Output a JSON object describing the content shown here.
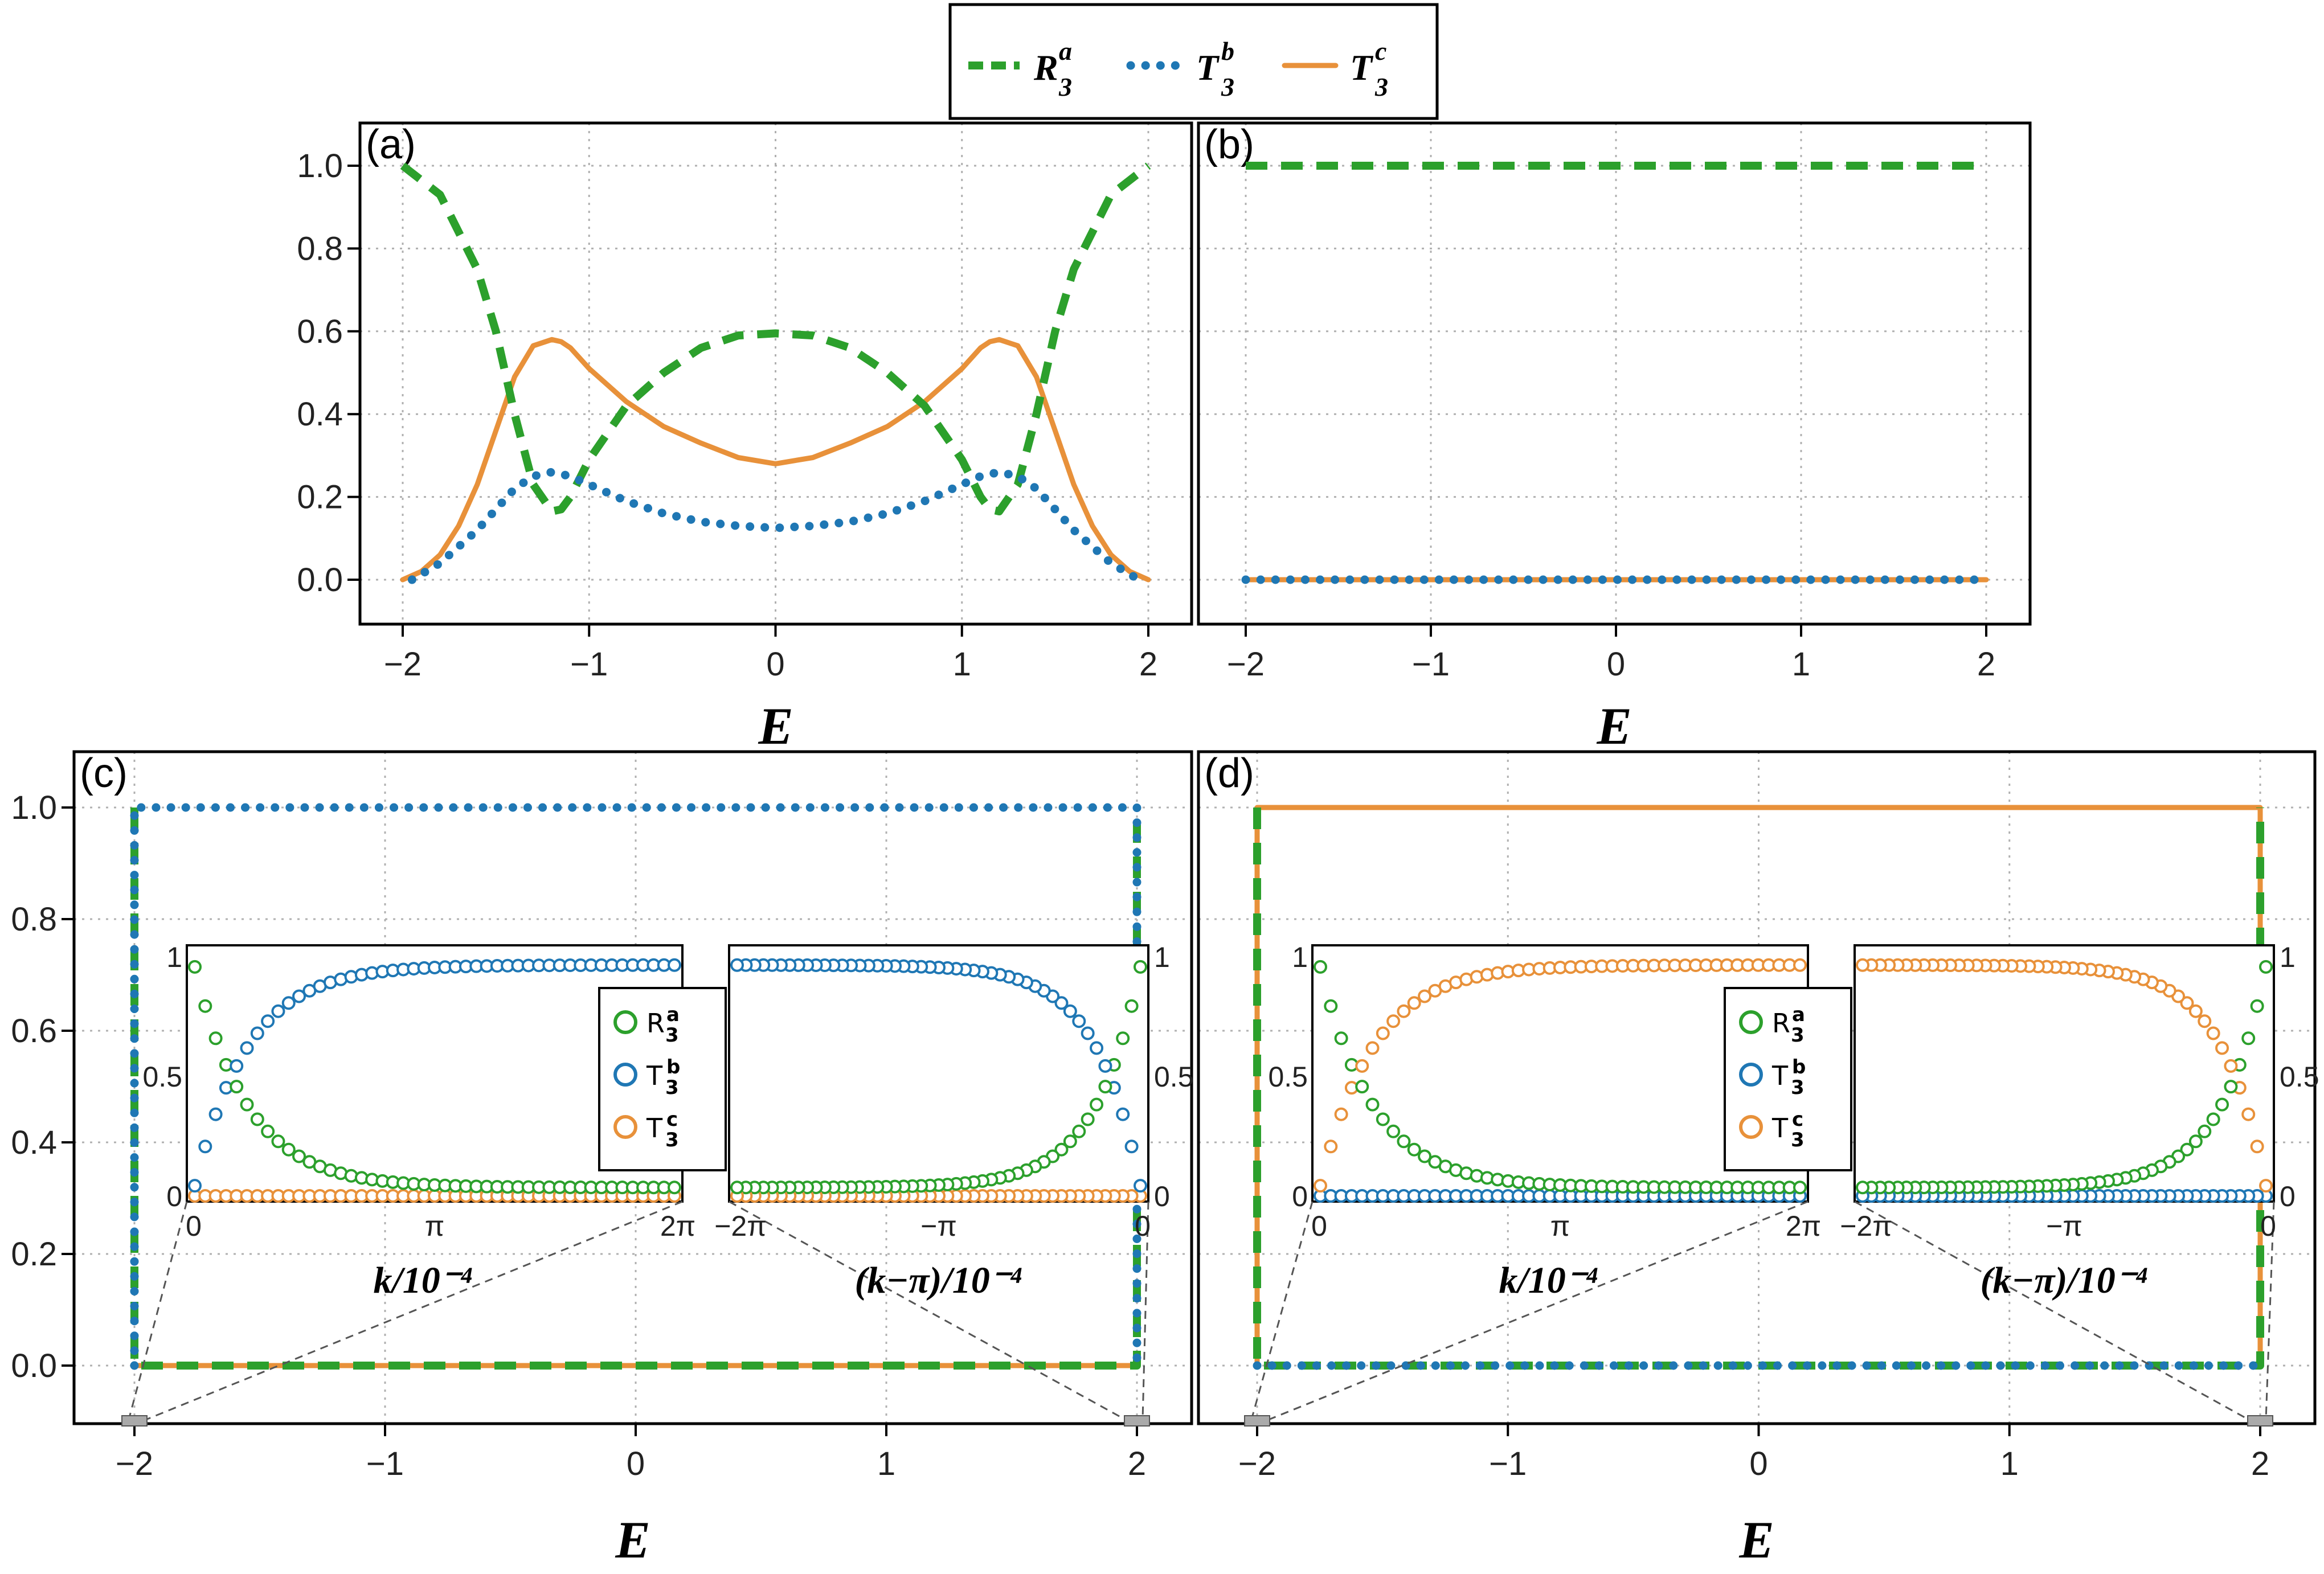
{
  "colors": {
    "R": "#2ca02c",
    "Tb": "#1f77b4",
    "Tc": "#e8913a",
    "axis": "#000000",
    "grid": "#b0b0b0"
  },
  "legend": [
    {
      "key": "R",
      "base": "R",
      "sup": "a",
      "sub": "3",
      "style": "dashed"
    },
    {
      "key": "Tb",
      "base": "T",
      "sup": "b",
      "sub": "3",
      "style": "dotted"
    },
    {
      "key": "Tc",
      "base": "T",
      "sup": "c",
      "sub": "3",
      "style": "solid"
    }
  ],
  "x_axis_label": "E",
  "panel_labels": {
    "a": "(a)",
    "b": "(b)",
    "c": "(c)",
    "d": "(d)"
  },
  "x_ticks": [
    "−2",
    "−1",
    "0",
    "1",
    "2"
  ],
  "y_ticks": [
    "0.0",
    "0.2",
    "0.4",
    "0.6",
    "0.8",
    "1.0"
  ],
  "inset": {
    "left_xlabel": "k/10⁻⁴",
    "right_xlabel": "(k−π)/10⁻⁴",
    "left_xticks": [
      "0",
      "π",
      "2π"
    ],
    "right_xticks": [
      "−2π",
      "−π",
      "0"
    ],
    "yticks": [
      "0",
      "0.5",
      "1"
    ],
    "legend": [
      {
        "key": "R",
        "base": "R",
        "sup": "a",
        "sub": "3"
      },
      {
        "key": "Tb",
        "base": "T",
        "sup": "b",
        "sub": "3"
      },
      {
        "key": "Tc",
        "base": "T",
        "sup": "c",
        "sub": "3"
      }
    ]
  },
  "chart_data": [
    {
      "panel": "a",
      "type": "line",
      "xlim": [
        -2,
        2
      ],
      "ylim": [
        -0.1,
        1.1
      ],
      "grid": true,
      "series": [
        {
          "name": "R3a",
          "x": [
            -2,
            -1.8,
            -1.6,
            -1.5,
            -1.4,
            -1.3,
            -1.2,
            -1.15,
            -1.1,
            -1.0,
            -0.8,
            -0.6,
            -0.4,
            -0.2,
            0,
            0.2,
            0.4,
            0.6,
            0.8,
            1.0,
            1.1,
            1.15,
            1.2,
            1.3,
            1.4,
            1.5,
            1.6,
            1.8,
            2
          ],
          "y": [
            1.0,
            0.93,
            0.75,
            0.6,
            0.4,
            0.23,
            0.165,
            0.17,
            0.2,
            0.29,
            0.42,
            0.5,
            0.56,
            0.59,
            0.595,
            0.59,
            0.56,
            0.5,
            0.42,
            0.29,
            0.2,
            0.17,
            0.165,
            0.23,
            0.4,
            0.6,
            0.75,
            0.93,
            1.0
          ]
        },
        {
          "name": "T3b",
          "x": [
            -1.95,
            -1.8,
            -1.6,
            -1.5,
            -1.4,
            -1.3,
            -1.2,
            -1.1,
            -1.0,
            -0.8,
            -0.6,
            -0.4,
            -0.2,
            0,
            0.2,
            0.4,
            0.6,
            0.8,
            1.0,
            1.1,
            1.2,
            1.3,
            1.4,
            1.5,
            1.6,
            1.8,
            1.95
          ],
          "y": [
            0.0,
            0.04,
            0.12,
            0.17,
            0.22,
            0.25,
            0.26,
            0.25,
            0.23,
            0.19,
            0.16,
            0.14,
            0.13,
            0.125,
            0.13,
            0.14,
            0.16,
            0.19,
            0.23,
            0.25,
            0.26,
            0.25,
            0.22,
            0.17,
            0.12,
            0.04,
            0.0
          ]
        },
        {
          "name": "T3c",
          "x": [
            -2,
            -1.9,
            -1.8,
            -1.7,
            -1.6,
            -1.5,
            -1.4,
            -1.3,
            -1.2,
            -1.15,
            -1.1,
            -1.0,
            -0.8,
            -0.6,
            -0.4,
            -0.2,
            0,
            0.2,
            0.4,
            0.6,
            0.8,
            1.0,
            1.1,
            1.15,
            1.2,
            1.3,
            1.4,
            1.5,
            1.6,
            1.7,
            1.8,
            1.9,
            2
          ],
          "y": [
            0.0,
            0.02,
            0.06,
            0.13,
            0.23,
            0.36,
            0.49,
            0.565,
            0.58,
            0.575,
            0.56,
            0.51,
            0.43,
            0.37,
            0.33,
            0.295,
            0.28,
            0.295,
            0.33,
            0.37,
            0.43,
            0.51,
            0.56,
            0.575,
            0.58,
            0.565,
            0.49,
            0.36,
            0.23,
            0.13,
            0.06,
            0.02,
            0.0
          ]
        }
      ]
    },
    {
      "panel": "b",
      "type": "line",
      "xlim": [
        -2.2,
        2.2
      ],
      "ylim": [
        -0.1,
        1.1
      ],
      "grid": true,
      "series": [
        {
          "name": "R3a",
          "x": [
            -2,
            2
          ],
          "y": [
            1.0,
            1.0
          ]
        },
        {
          "name": "T3b",
          "x": [
            -2,
            2
          ],
          "y": [
            0.0,
            0.0
          ]
        },
        {
          "name": "T3c",
          "x": [
            -2,
            2
          ],
          "y": [
            0.0,
            0.0
          ]
        }
      ]
    },
    {
      "panel": "c",
      "type": "line",
      "xlim": [
        -2.2,
        2.2
      ],
      "ylim": [
        -0.1,
        1.1
      ],
      "grid": true,
      "series": [
        {
          "name": "R3a",
          "x": [
            -2,
            -2,
            2,
            2
          ],
          "y": [
            1.0,
            0.0,
            0.0,
            1.0
          ]
        },
        {
          "name": "T3b",
          "x": [
            -2,
            -2,
            2,
            2
          ],
          "y": [
            0.0,
            1.0,
            1.0,
            0.0
          ]
        },
        {
          "name": "T3c",
          "x": [
            -2,
            2
          ],
          "y": [
            0.0,
            0.0
          ]
        }
      ]
    },
    {
      "panel": "d",
      "type": "line",
      "xlim": [
        -2.2,
        2.2
      ],
      "ylim": [
        -0.1,
        1.1
      ],
      "grid": true,
      "series": [
        {
          "name": "R3a",
          "x": [
            -2,
            -2,
            2,
            2
          ],
          "y": [
            1.0,
            0.0,
            0.0,
            1.0
          ]
        },
        {
          "name": "T3b",
          "x": [
            -2,
            2
          ],
          "y": [
            0.0,
            0.0
          ]
        },
        {
          "name": "T3c",
          "x": [
            -2,
            -2,
            2,
            2
          ],
          "y": [
            0.0,
            1.0,
            1.0,
            0.0
          ]
        }
      ]
    }
  ]
}
